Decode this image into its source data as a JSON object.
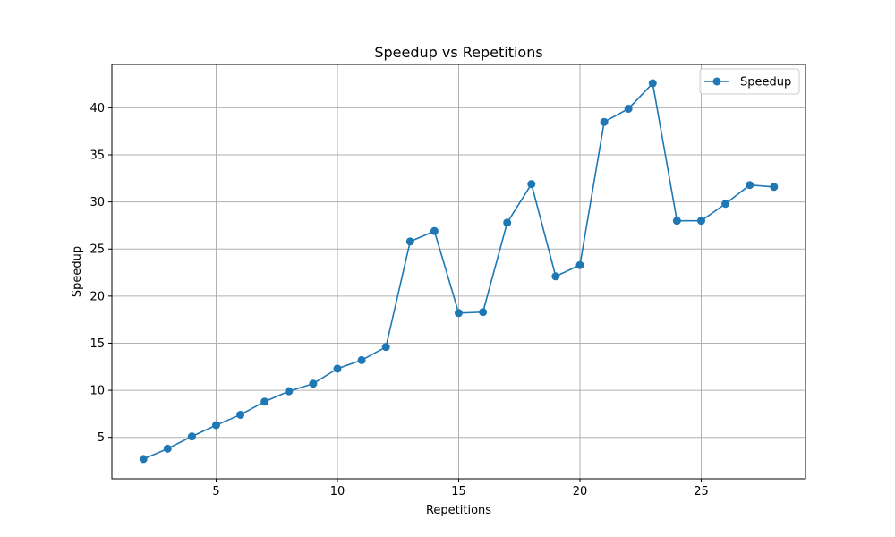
{
  "chart_data": {
    "type": "line",
    "title": "Speedup vs Repetitions",
    "xlabel": "Repetitions",
    "ylabel": "Speedup",
    "xlim": [
      0.7,
      29.3
    ],
    "ylim": [
      0.6,
      44.6
    ],
    "xticks": [
      5,
      10,
      15,
      20,
      25
    ],
    "yticks": [
      5,
      10,
      15,
      20,
      25,
      30,
      35,
      40
    ],
    "grid": true,
    "legend_position": "upper-right",
    "series": [
      {
        "name": "Speedup",
        "color": "#1f77b4",
        "marker": "circle",
        "x": [
          2,
          3,
          4,
          5,
          6,
          7,
          8,
          9,
          10,
          11,
          12,
          13,
          14,
          15,
          16,
          17,
          18,
          19,
          20,
          21,
          22,
          23,
          24,
          25,
          26,
          27,
          28
        ],
        "y": [
          2.7,
          3.8,
          5.1,
          6.3,
          7.4,
          8.8,
          9.9,
          10.7,
          12.3,
          13.2,
          14.6,
          25.8,
          26.9,
          18.2,
          18.3,
          27.8,
          31.9,
          22.1,
          23.3,
          38.5,
          39.9,
          42.6,
          28.0,
          28.0,
          29.8,
          31.8,
          31.6
        ]
      }
    ]
  }
}
